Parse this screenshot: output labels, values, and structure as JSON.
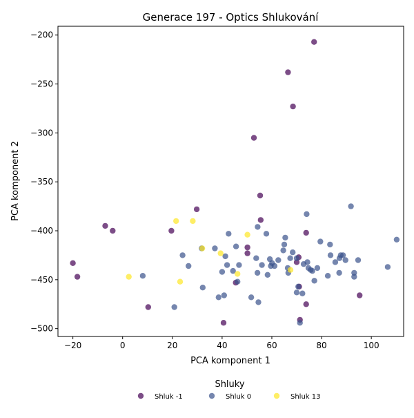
{
  "chart_data": {
    "type": "scatter",
    "title": "Generace 197 - Optics Shlukování",
    "xlabel": "PCA komponent 1",
    "ylabel": "PCA komponent 2",
    "xlim": [
      -26,
      113
    ],
    "ylim": [
      -508,
      -191
    ],
    "x_ticks": [
      -20,
      0,
      20,
      40,
      60,
      80,
      100
    ],
    "x_tick_labels": [
      "−20",
      "0",
      "20",
      "40",
      "60",
      "80",
      "100"
    ],
    "y_ticks": [
      -200,
      -250,
      -300,
      -350,
      -400,
      -450,
      -500
    ],
    "y_tick_labels": [
      "−200",
      "−250",
      "−300",
      "−350",
      "−400",
      "−450",
      "−500"
    ],
    "grid": false,
    "legend": {
      "title": "Shluky",
      "placement": "bottom-center",
      "entries": [
        "Shluk -1",
        "Shluk 0",
        "Shluk 13"
      ]
    },
    "series": [
      {
        "name": "Shluk -1",
        "color": "#440154",
        "points": [
          [
            77.0,
            -207
          ],
          [
            66.5,
            -238
          ],
          [
            68.5,
            -273
          ],
          [
            52.8,
            -305
          ],
          [
            55.3,
            -364
          ],
          [
            29.8,
            -378
          ],
          [
            55.5,
            -389
          ],
          [
            -7.0,
            -395
          ],
          [
            -4.0,
            -400
          ],
          [
            19.6,
            -400
          ],
          [
            73.8,
            -402
          ],
          [
            50.2,
            -417
          ],
          [
            50.2,
            -423
          ],
          [
            -20.0,
            -433
          ],
          [
            -18.2,
            -447
          ],
          [
            45.5,
            -453
          ],
          [
            10.3,
            -478
          ],
          [
            40.6,
            -494
          ],
          [
            73.8,
            -475
          ],
          [
            95.3,
            -466
          ],
          [
            71.3,
            -491
          ],
          [
            71.0,
            -457
          ],
          [
            70.8,
            -427
          ],
          [
            70.0,
            -432
          ]
        ]
      },
      {
        "name": "Shluk 0",
        "color": "#3b528b",
        "points": [
          [
            91.8,
            -375
          ],
          [
            74.0,
            -383
          ],
          [
            110.2,
            -409
          ],
          [
            65.4,
            -407
          ],
          [
            79.5,
            -411
          ],
          [
            42.6,
            -403
          ],
          [
            57.8,
            -403
          ],
          [
            54.3,
            -396
          ],
          [
            83.4,
            -414
          ],
          [
            31.8,
            -418
          ],
          [
            37.1,
            -418
          ],
          [
            45.6,
            -416
          ],
          [
            65.0,
            -414
          ],
          [
            64.6,
            -420
          ],
          [
            68.4,
            -422
          ],
          [
            87.7,
            -425
          ],
          [
            83.6,
            -425
          ],
          [
            88.6,
            -425
          ],
          [
            24.1,
            -425
          ],
          [
            41.3,
            -426
          ],
          [
            53.7,
            -428
          ],
          [
            59.2,
            -429
          ],
          [
            62.6,
            -430
          ],
          [
            67.4,
            -428
          ],
          [
            70.0,
            -428
          ],
          [
            87.2,
            -428
          ],
          [
            89.6,
            -430
          ],
          [
            94.7,
            -430
          ],
          [
            85.5,
            -432
          ],
          [
            72.8,
            -434
          ],
          [
            74.3,
            -432
          ],
          [
            60.1,
            -433
          ],
          [
            56.0,
            -435
          ],
          [
            42.0,
            -435
          ],
          [
            46.8,
            -435
          ],
          [
            59.6,
            -436
          ],
          [
            26.5,
            -436
          ],
          [
            61.1,
            -436
          ],
          [
            66.4,
            -438
          ],
          [
            74.7,
            -438
          ],
          [
            106.6,
            -437
          ],
          [
            78.3,
            -438
          ],
          [
            75.6,
            -440
          ],
          [
            76.3,
            -441
          ],
          [
            66.6,
            -443
          ],
          [
            44.4,
            -441
          ],
          [
            40.0,
            -442
          ],
          [
            54.2,
            -443
          ],
          [
            58.3,
            -445
          ],
          [
            87.1,
            -443
          ],
          [
            93.1,
            -443
          ],
          [
            82.5,
            -446
          ],
          [
            93.1,
            -447
          ],
          [
            8.1,
            -446
          ],
          [
            77.1,
            -451
          ],
          [
            46.2,
            -452
          ],
          [
            70.6,
            -457
          ],
          [
            32.2,
            -458
          ],
          [
            70.0,
            -463
          ],
          [
            72.3,
            -464
          ],
          [
            40.8,
            -466
          ],
          [
            38.6,
            -468
          ],
          [
            51.7,
            -468
          ],
          [
            54.6,
            -473
          ],
          [
            71.3,
            -494
          ],
          [
            20.8,
            -478
          ]
        ]
      },
      {
        "name": "Shluk 13",
        "color": "#fde725",
        "points": [
          [
            21.5,
            -390
          ],
          [
            28.2,
            -390
          ],
          [
            50.2,
            -404
          ],
          [
            32.0,
            -418
          ],
          [
            39.4,
            -423
          ],
          [
            67.5,
            -440
          ],
          [
            46.2,
            -444
          ],
          [
            2.5,
            -447
          ],
          [
            23.1,
            -452
          ]
        ]
      }
    ]
  }
}
